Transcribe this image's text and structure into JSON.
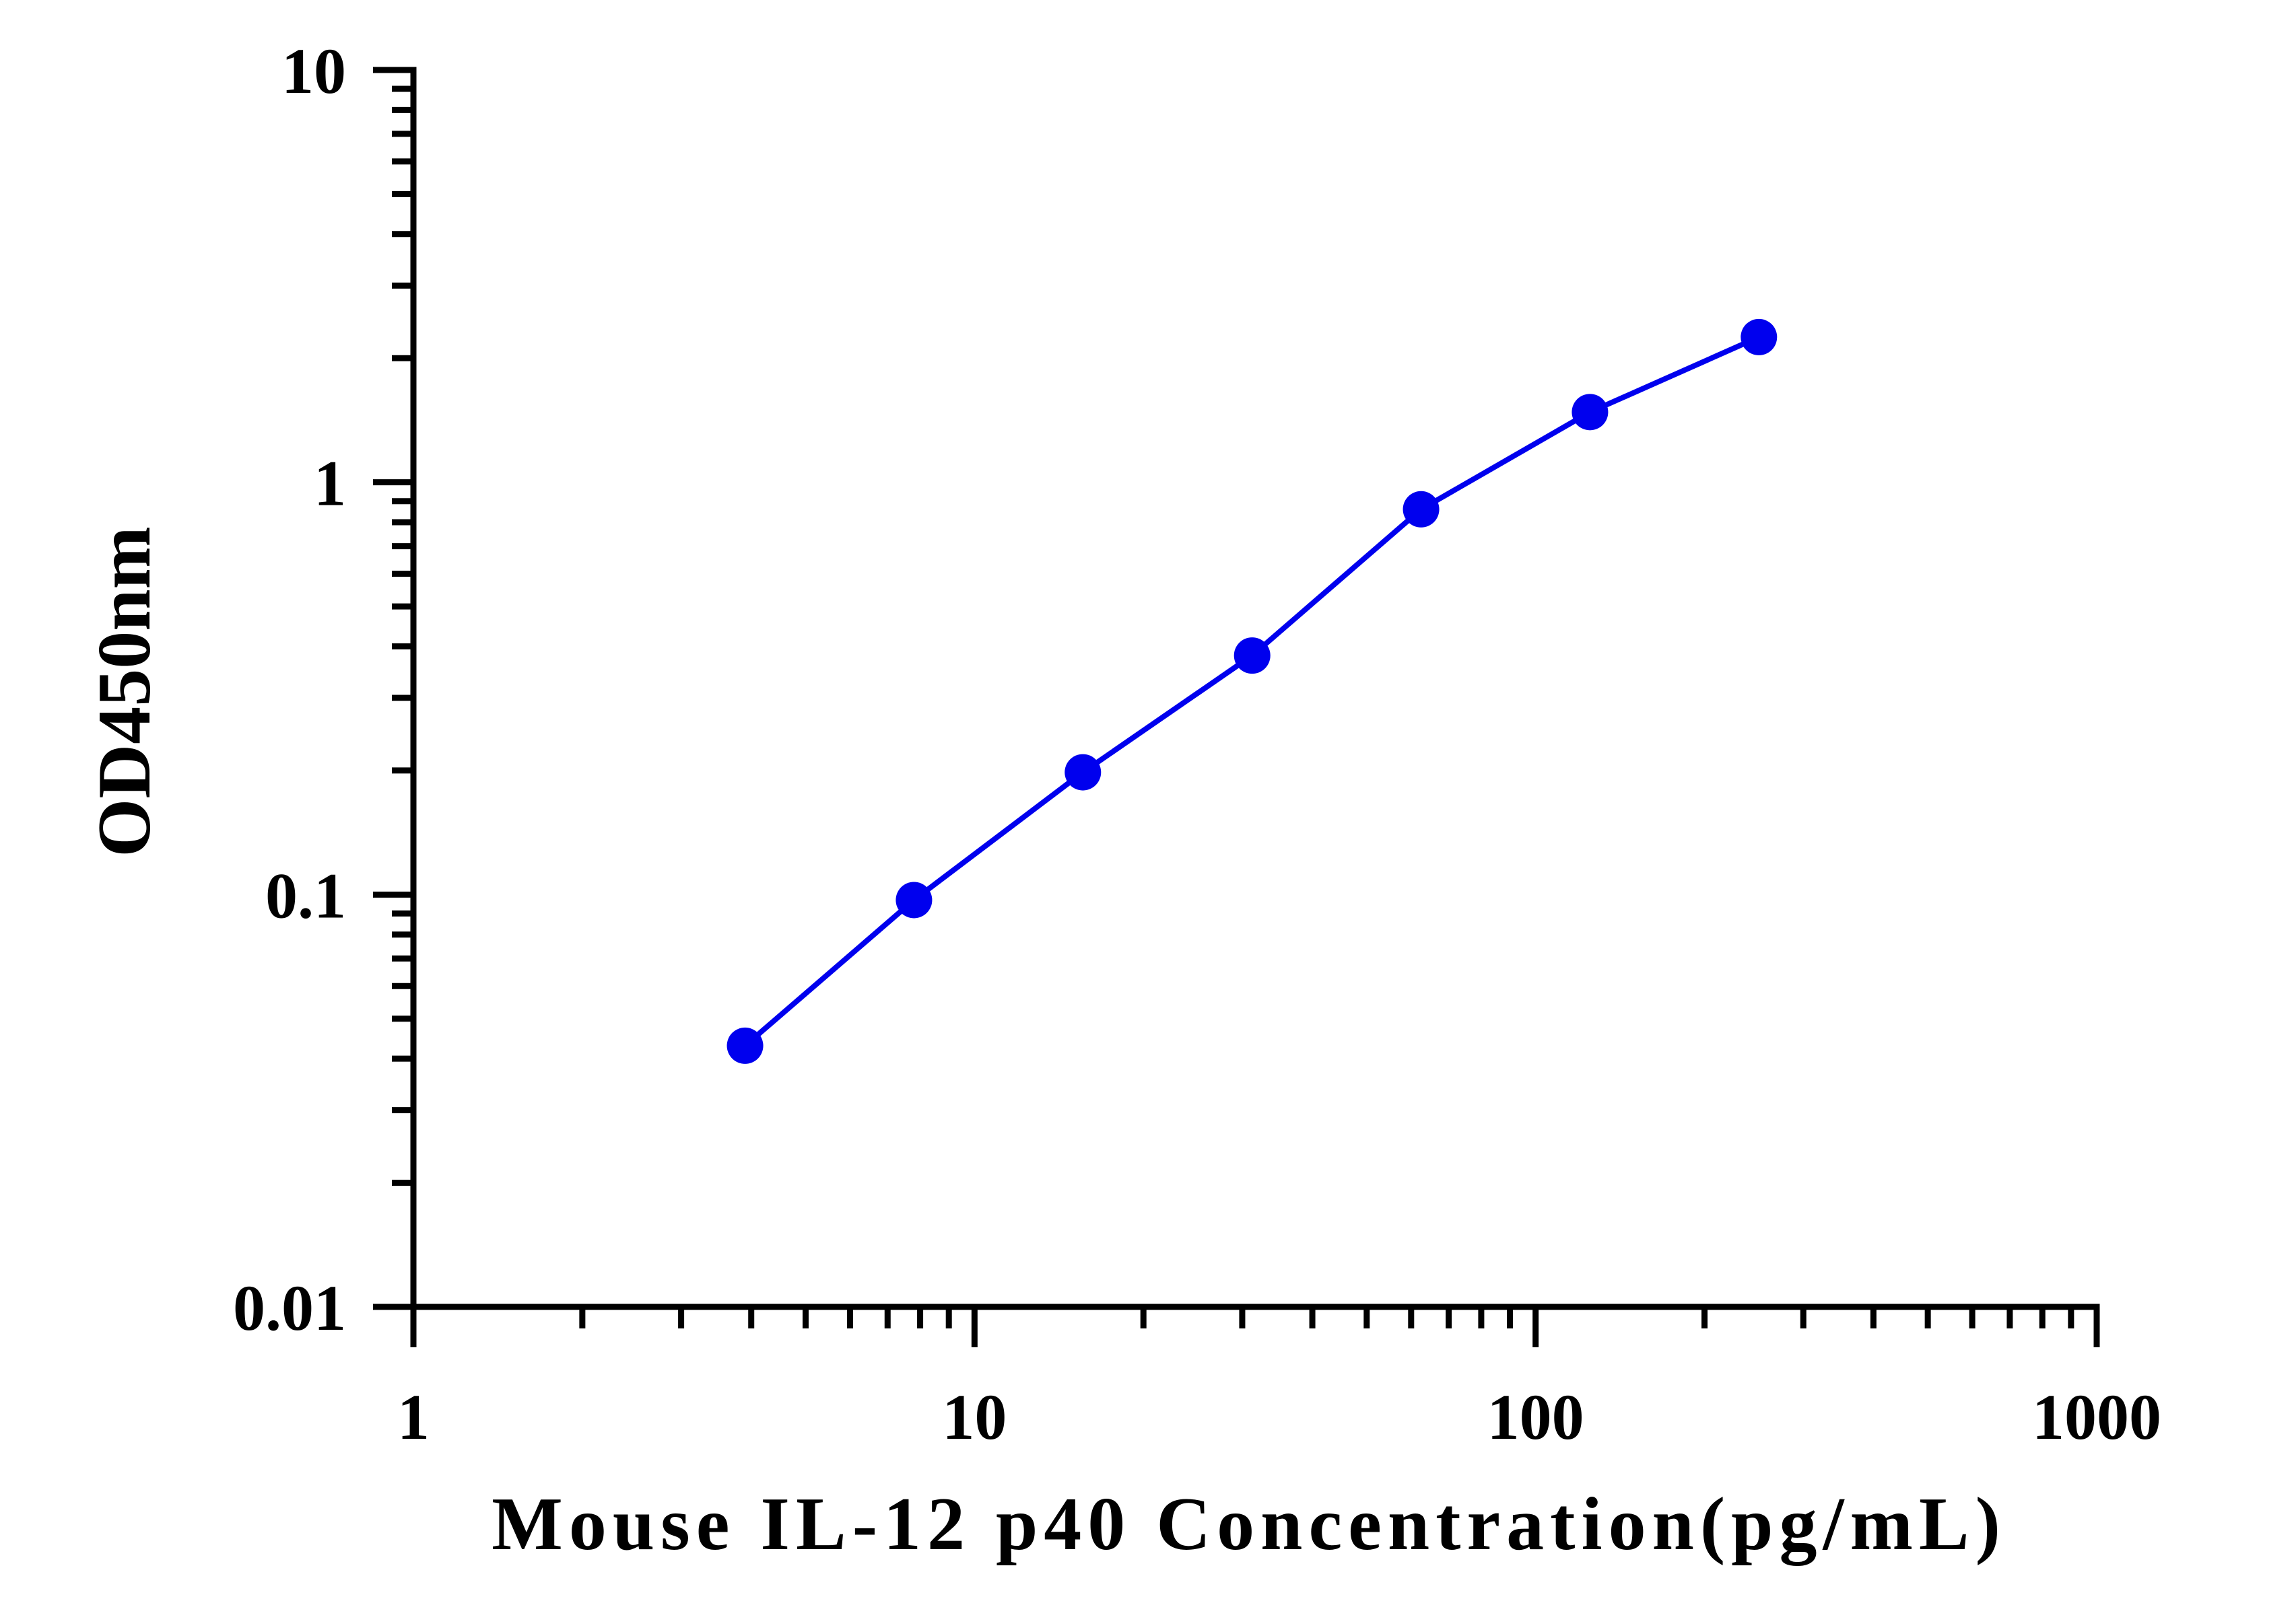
{
  "chart_data": {
    "type": "line",
    "xlabel": "Mouse IL-12 p40 Concentration(pg/mL)",
    "ylabel": "OD450nm",
    "x_scale": "log",
    "y_scale": "log",
    "xlim": [
      1,
      1000
    ],
    "ylim": [
      0.01,
      10
    ],
    "x_ticks": [
      "1",
      "10",
      "100",
      "1000"
    ],
    "y_ticks": [
      "0.01",
      "0.1",
      "1",
      "10"
    ],
    "grid": false,
    "series": [
      {
        "color": "#0000ee",
        "marker": "circle",
        "x": [
          3.9,
          7.8,
          15.6,
          31.25,
          62.5,
          125,
          250
        ],
        "y": [
          0.043,
          0.097,
          0.198,
          0.38,
          0.86,
          1.48,
          2.25
        ]
      }
    ]
  }
}
